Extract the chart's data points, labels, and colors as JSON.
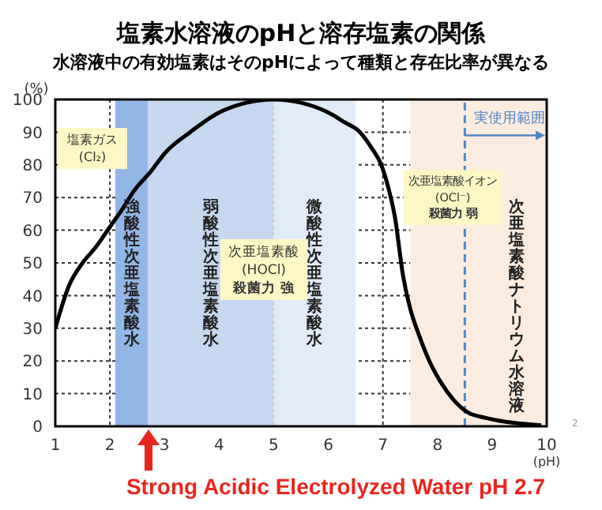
{
  "chart_data": {
    "type": "line",
    "title": "塩素水溶液のpHと溶存塩素の関係",
    "subtitle": "水溶液中の有効塩素はそのpHによって種類と存在比率が異なる",
    "xlabel": "(pH)",
    "ylabel": "(%)",
    "x": [
      1,
      1.25,
      1.5,
      1.75,
      2,
      2.25,
      2.44,
      2.75,
      3.03,
      3.47,
      4,
      4.5,
      5,
      5.5,
      6,
      6.3,
      6.58,
      6.8,
      6.97,
      7.1,
      7.22,
      7.37,
      7.5,
      7.66,
      7.85,
      8.06,
      8.3,
      8.55,
      8.9,
      9.2,
      9.6,
      9.9
    ],
    "series": [
      {
        "color": "#000000",
        "values": [
          30,
          43,
          50,
          55,
          61,
          67,
          72,
          78,
          84,
          90,
          96,
          99,
          100,
          99,
          96,
          93,
          90,
          85,
          80,
          73,
          64,
          46,
          36,
          28,
          20,
          13.5,
          8,
          4.3,
          2.5,
          1.5,
          0.7,
          0.3
        ]
      }
    ],
    "xlim": [
      1,
      10
    ],
    "xticks": [
      1,
      2,
      3,
      4,
      5,
      6,
      7,
      8,
      9,
      10
    ],
    "ylim": [
      0,
      100
    ],
    "yticks": [
      0,
      10,
      20,
      30,
      40,
      50,
      60,
      70,
      80,
      90,
      100
    ],
    "grid": true,
    "marker": "none",
    "line_style": "solid",
    "bands": [
      {
        "axis": "x",
        "from": 2.1,
        "to": 2.7,
        "label": "強酸性次亜塩素酸水",
        "color": "#92b7e6"
      },
      {
        "axis": "x",
        "from": 2.7,
        "to": 5,
        "label": "弱酸性次亜塩素酸水",
        "color": "#c6d8f0"
      },
      {
        "axis": "x",
        "from": 5,
        "to": 6.5,
        "label": "微酸性次亜塩素酸水",
        "color": "#e2ebf8"
      },
      {
        "axis": "x",
        "from": 7.5,
        "to": 10,
        "label": "次亜塩素酸ナトリウム水溶液",
        "color": "#fcece0"
      }
    ],
    "ref_lines": [
      {
        "axis": "x",
        "value": 8.5,
        "label": "実使用範囲",
        "color": "#4f86c6",
        "line_style": "dashed"
      }
    ],
    "annotations": [
      "塩素ガス\n(Cl₂)",
      "次亜塩素酸\n(HOCl)\n殺菌力 強",
      "次亜塩素酸イオン\n(OCl⁻)\n殺菌力 弱",
      {
        "text": "Strong Acidic Electrolyzed Water pH 2.7",
        "x": 2.7,
        "y": 0
      },
      "2"
    ]
  }
}
